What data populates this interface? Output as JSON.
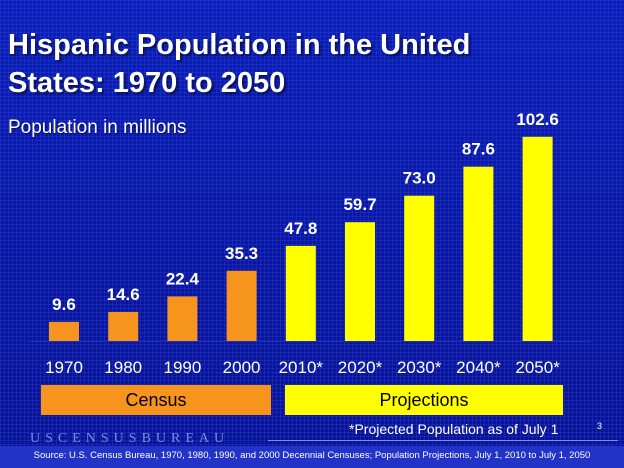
{
  "slide": {
    "title": "Hispanic Population in the United States: 1970 to 2050",
    "subtitle": "Population in millions",
    "census_label": "Census",
    "projections_label": "Projections",
    "footnote": "*Projected Population as of July 1",
    "page_number": "3",
    "logo_text": "USCENSUSBUREAU",
    "source": "Source: U.S. Census Bureau, 1970, 1980, 1990, and 2000 Decennial Censuses; Population Projections, July 1, 2010 to July 1, 2050"
  },
  "colors": {
    "census_bar": "#f7941d",
    "projection_bar": "#ffff00",
    "label_text": "#ffffff",
    "background": "#0a17a3"
  },
  "chart_data": {
    "type": "bar",
    "title": "Hispanic Population in the United States: 1970 to 2050",
    "ylabel": "Population in millions",
    "categories": [
      "1970",
      "1980",
      "1990",
      "2000",
      "2010*",
      "2020*",
      "2030*",
      "2040*",
      "2050*"
    ],
    "values": [
      9.6,
      14.6,
      22.4,
      35.3,
      47.8,
      59.7,
      73.0,
      87.6,
      102.6
    ],
    "value_labels": [
      "9.6",
      "14.6",
      "22.4",
      "35.3",
      "47.8",
      "59.7",
      "73.0",
      "87.6",
      "102.6"
    ],
    "groups": [
      "Census",
      "Census",
      "Census",
      "Census",
      "Projections",
      "Projections",
      "Projections",
      "Projections",
      "Projections"
    ],
    "grid": false,
    "legend": "below axis"
  }
}
